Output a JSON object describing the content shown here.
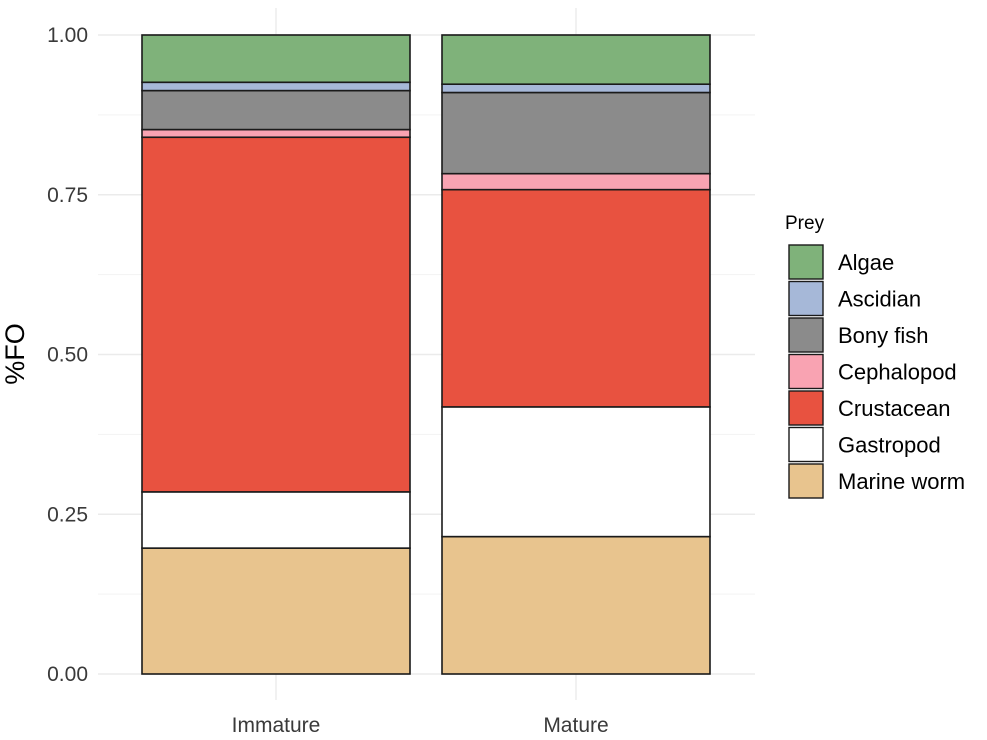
{
  "chart_data": {
    "type": "bar",
    "stacked": true,
    "title": "",
    "xlabel": "",
    "ylabel": "%FO",
    "ylim": [
      0,
      1
    ],
    "yticks": [
      "0.00",
      "0.25",
      "0.50",
      "0.75",
      "1.00"
    ],
    "categories": [
      "Immature",
      "Mature"
    ],
    "grid": true,
    "legend": {
      "title": "Prey",
      "position": "right"
    },
    "series": [
      {
        "name": "Marine worm",
        "color": "#E8C48E",
        "values": [
          0.197,
          0.215
        ]
      },
      {
        "name": "Gastropod",
        "color": "#FFFFFF",
        "values": [
          0.088,
          0.203
        ]
      },
      {
        "name": "Crustacean",
        "color": "#E85240",
        "values": [
          0.555,
          0.34
        ]
      },
      {
        "name": "Cephalopod",
        "color": "#F9A3B2",
        "values": [
          0.012,
          0.025
        ]
      },
      {
        "name": "Bony fish",
        "color": "#8B8B8B",
        "values": [
          0.061,
          0.127
        ]
      },
      {
        "name": "Ascidian",
        "color": "#A6B8D8",
        "values": [
          0.013,
          0.013
        ]
      },
      {
        "name": "Algae",
        "color": "#7FB27A",
        "values": [
          0.074,
          0.077
        ]
      }
    ],
    "legend_order": [
      "Algae",
      "Ascidian",
      "Bony fish",
      "Cephalopod",
      "Crustacean",
      "Gastropod",
      "Marine worm"
    ]
  }
}
